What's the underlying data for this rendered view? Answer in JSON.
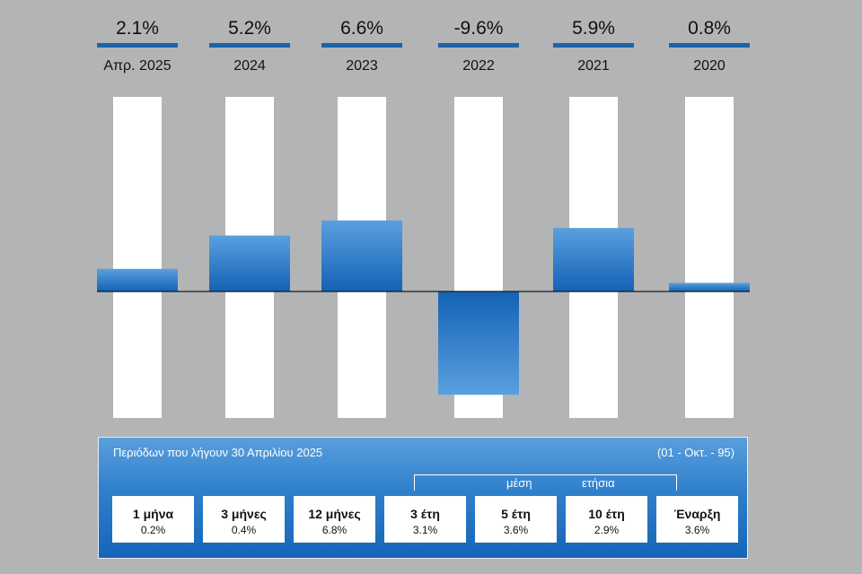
{
  "chart_data": {
    "type": "bar",
    "categories": [
      "Απρ. 2025",
      "2024",
      "2023",
      "2022",
      "2021",
      "2020"
    ],
    "values": [
      2.1,
      5.2,
      6.6,
      -9.6,
      5.9,
      0.8
    ],
    "value_labels": [
      "2.1%",
      "5.2%",
      "6.6%",
      "-9.6%",
      "5.9%",
      "0.8%"
    ],
    "ylim": [
      -9.6,
      10
    ],
    "colors": {
      "bar_top": "#5aa0df",
      "bar_bottom": "#1462b5",
      "header_line": "#1f62a9",
      "track": "#ffffff",
      "background": "#b3b4b6"
    }
  },
  "summary": {
    "title": "Περιόδων που λήγουν 30 Απριλίου 2025",
    "range": "(01 - Οκτ. - 95)",
    "avg_label": "μέση",
    "annual_label": "ετήσια",
    "cards": [
      {
        "label": "1 μήνα",
        "value": "0.2%"
      },
      {
        "label": "3 μήνες",
        "value": "0.4%"
      },
      {
        "label": "12 μήνες",
        "value": "6.8%"
      },
      {
        "label": "3 έτη",
        "value": "3.1%"
      },
      {
        "label": "5 έτη",
        "value": "3.6%"
      },
      {
        "label": "10 έτη",
        "value": "2.9%"
      },
      {
        "label": "Έναρξη",
        "value": "3.6%"
      }
    ]
  }
}
